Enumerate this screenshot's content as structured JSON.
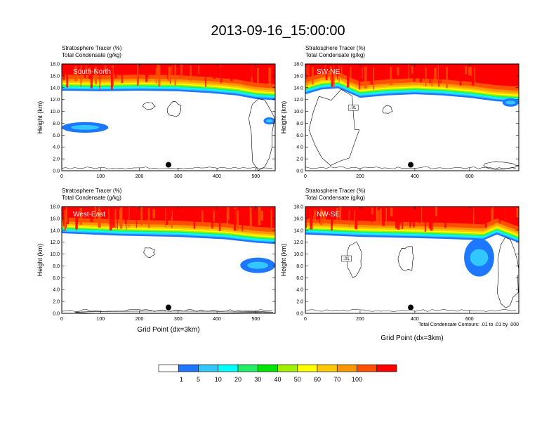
{
  "figure": {
    "title": "2013-09-16_15:00:00",
    "footnote": "Total Condensate Contours: .01 to .01 by .000"
  },
  "chart_data": {
    "type": "heatmap",
    "panels": [
      {
        "id": "south-north",
        "label": "South-North",
        "subtitle_1": "Stratosphere Tracer   (%)",
        "subtitle_2": "Total Condensate   (g/kg)",
        "ylabel": "Height (km)",
        "xlabel": "",
        "xlim": [
          0,
          550
        ],
        "ylim": [
          0,
          18
        ],
        "xticks": [
          0,
          100,
          200,
          300,
          400,
          500
        ],
        "yticks": [
          0,
          2,
          4,
          6,
          8,
          10,
          12,
          14,
          16,
          18
        ],
        "ytick_labels": [
          "0.0",
          "2.0",
          "4.0",
          "6.0",
          "8.0",
          "10.0",
          "12.0",
          "14.0",
          "16.0",
          "18.0"
        ],
        "dot": [
          275,
          1.0
        ],
        "contour_label": "",
        "tropopause": [
          [
            0,
            14.4
          ],
          [
            100,
            14.3
          ],
          [
            200,
            14.4
          ],
          [
            300,
            14.3
          ],
          [
            380,
            14.0
          ],
          [
            450,
            13.6
          ],
          [
            500,
            13.0
          ],
          [
            550,
            12.8
          ]
        ],
        "tracer_blobs": [
          {
            "x": [
              0,
              120
            ],
            "y": [
              6.4,
              8.2
            ],
            "level": 5
          },
          {
            "x": [
              520,
              550
            ],
            "y": [
              7.8,
              9.0
            ],
            "level": 5
          }
        ],
        "cloud_contours": [
          {
            "x": [
              210,
              240
            ],
            "y": [
              10.2,
              11.6
            ]
          },
          {
            "x": [
              270,
              310
            ],
            "y": [
              9.0,
              11.8
            ]
          },
          {
            "x": [
              480,
              550
            ],
            "y": [
              0.4,
              12.0
            ]
          }
        ]
      },
      {
        "id": "sw-ne",
        "label": "SW-NE",
        "subtitle_1": "Stratosphere Tracer   (%)",
        "subtitle_2": "Total Condensate   (g/kg)",
        "ylabel": "Height (km)",
        "xlabel": "",
        "xlim": [
          0,
          780
        ],
        "ylim": [
          0,
          18
        ],
        "xticks": [
          0,
          200,
          400,
          600
        ],
        "yticks": [
          0,
          2,
          4,
          6,
          8,
          10,
          12,
          14,
          16,
          18
        ],
        "ytick_labels": [
          "0.0",
          "2.0",
          "4.0",
          "6.0",
          "8.0",
          "10.0",
          "12.0",
          "14.0",
          "16.0",
          "18.0"
        ],
        "dot": [
          385,
          1.0
        ],
        "contour_label": ".01",
        "tropopause": [
          [
            0,
            13.8
          ],
          [
            60,
            14.6
          ],
          [
            120,
            14.8
          ],
          [
            200,
            13.2
          ],
          [
            300,
            13.6
          ],
          [
            400,
            13.8
          ],
          [
            500,
            13.6
          ],
          [
            600,
            13.2
          ],
          [
            700,
            12.6
          ],
          [
            780,
            12.4
          ]
        ],
        "tracer_blobs": [
          {
            "x": [
              720,
              780
            ],
            "y": [
              10.8,
              12.2
            ],
            "level": 5
          }
        ],
        "cloud_contours": [
          {
            "x": [
              20,
              200
            ],
            "y": [
              0.2,
              13.6
            ]
          },
          {
            "x": [
              280,
              320
            ],
            "y": [
              9.6,
              11.0
            ]
          },
          {
            "x": [
              640,
              780
            ],
            "y": [
              0.2,
              1.6
            ]
          }
        ]
      },
      {
        "id": "west-east",
        "label": "West-East",
        "subtitle_1": "Stratosphere Tracer   (%)",
        "subtitle_2": "Total Condensate   (g/kg)",
        "ylabel": "Height (km)",
        "xlabel": "Grid Point (dx=3km)",
        "xlim": [
          0,
          550
        ],
        "ylim": [
          0,
          18
        ],
        "xticks": [
          0,
          100,
          200,
          300,
          400,
          500
        ],
        "yticks": [
          0,
          2,
          4,
          6,
          8,
          10,
          12,
          14,
          16,
          18
        ],
        "ytick_labels": [
          "0.0",
          "2.0",
          "4.0",
          "6.0",
          "8.0",
          "10.0",
          "12.0",
          "14.0",
          "16.0",
          "18.0"
        ],
        "dot": [
          275,
          1.0
        ],
        "contour_label": "",
        "tropopause": [
          [
            0,
            14.4
          ],
          [
            150,
            14.0
          ],
          [
            300,
            13.8
          ],
          [
            420,
            13.4
          ],
          [
            500,
            12.8
          ],
          [
            550,
            12.6
          ]
        ],
        "tracer_blobs": [
          {
            "x": [
              460,
              550
            ],
            "y": [
              6.8,
              9.4
            ],
            "level": 5
          }
        ],
        "cloud_contours": [
          {
            "x": [
              210,
              240
            ],
            "y": [
              9.4,
              11.2
            ]
          },
          {
            "x": [
              0,
              550
            ],
            "y": [
              0.0,
              0.4
            ]
          }
        ]
      },
      {
        "id": "nw-se",
        "label": "NW-SE",
        "subtitle_1": "Stratosphere Tracer   (%)",
        "subtitle_2": "Total Condensate   (g/kg)",
        "ylabel": "Height (km)",
        "xlabel": "Grid Point (dx=3km)",
        "xlim": [
          0,
          780
        ],
        "ylim": [
          0,
          18
        ],
        "xticks": [
          0,
          200,
          400,
          600
        ],
        "yticks": [
          0,
          2,
          4,
          6,
          8,
          10,
          12,
          14,
          16,
          18
        ],
        "ytick_labels": [
          "0.0",
          "2.0",
          "4.0",
          "6.0",
          "8.0",
          "10.0",
          "12.0",
          "14.0",
          "16.0",
          "18.0"
        ],
        "dot": [
          385,
          1.0
        ],
        "contour_label": ".01",
        "tropopause": [
          [
            0,
            14.2
          ],
          [
            200,
            13.8
          ],
          [
            400,
            13.6
          ],
          [
            550,
            13.4
          ],
          [
            650,
            13.2
          ],
          [
            700,
            14.2
          ],
          [
            780,
            12.8
          ]
        ],
        "tracer_blobs": [
          {
            "x": [
              580,
              690
            ],
            "y": [
              6.2,
              12.6
            ],
            "level": 5
          }
        ],
        "cloud_contours": [
          {
            "x": [
              150,
              210
            ],
            "y": [
              6.0,
              12.0
            ]
          },
          {
            "x": [
              340,
              400
            ],
            "y": [
              6.8,
              11.6
            ]
          },
          {
            "x": [
              700,
              780
            ],
            "y": [
              0.2,
              12.6
            ]
          }
        ]
      }
    ],
    "colorbar": {
      "levels": [
        "1",
        "5",
        "10",
        "20",
        "30",
        "40",
        "50",
        "60",
        "70",
        "100"
      ],
      "colors": [
        "#ffffff",
        "#1e78ff",
        "#32c8ff",
        "#00ffff",
        "#22ee66",
        "#00e600",
        "#a0f000",
        "#ffff00",
        "#ffc800",
        "#ff9600",
        "#ff5000",
        "#ff0000"
      ]
    }
  }
}
